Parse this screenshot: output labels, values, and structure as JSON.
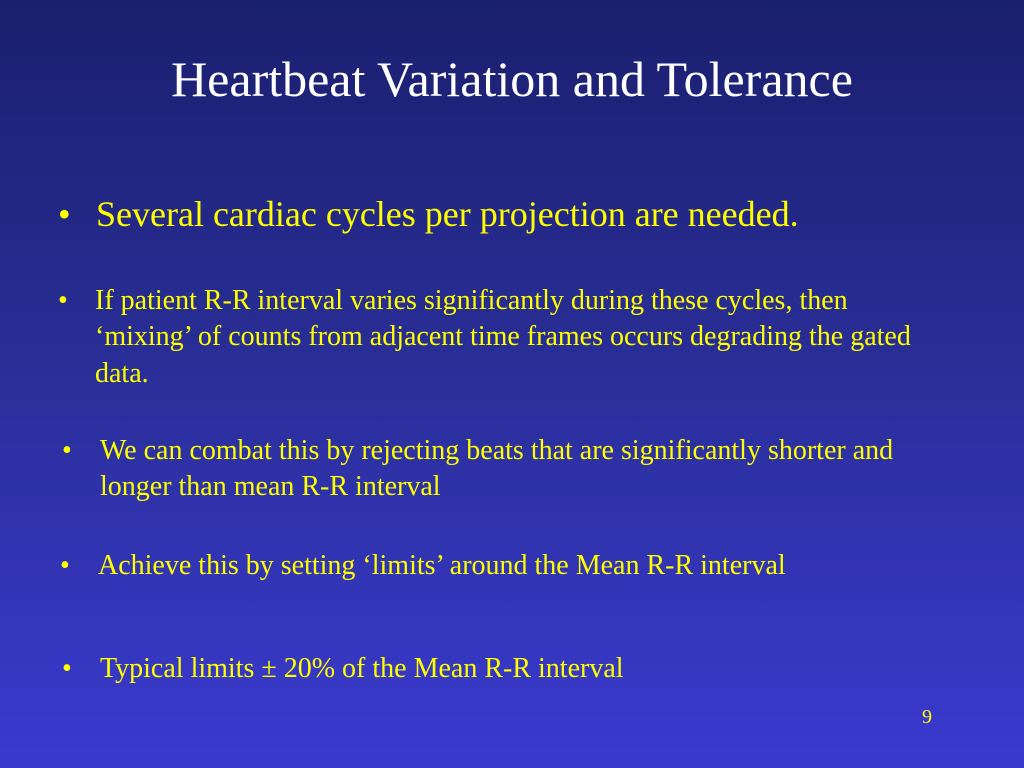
{
  "slide": {
    "title": "Heartbeat Variation and Tolerance",
    "bullet_symbol": "•",
    "bullets": [
      "Several cardiac cycles per projection are needed.",
      "If patient R-R interval varies significantly during these cycles, then ‘mixing’ of counts from adjacent time frames occurs degrading the gated data.",
      "We can combat this by rejecting beats that are significantly shorter and longer than mean R-R interval",
      "Achieve this by setting ‘limits’ around the Mean R-R interval",
      "Typical limits ± 20% of the Mean R-R interval"
    ],
    "page_number": "9",
    "colors": {
      "title": "#ffffff",
      "text": "#ffff00",
      "background_top": "#1a1f6e",
      "background_bottom": "#3a3ad0"
    }
  }
}
